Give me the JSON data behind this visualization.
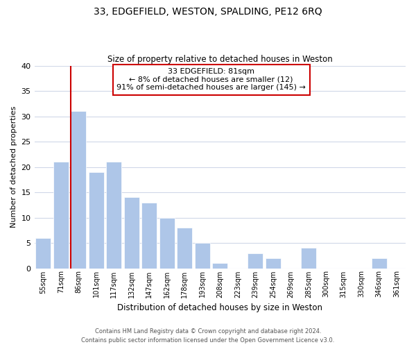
{
  "title_line1": "33, EDGEFIELD, WESTON, SPALDING, PE12 6RQ",
  "title_line2": "Size of property relative to detached houses in Weston",
  "xlabel": "Distribution of detached houses by size in Weston",
  "ylabel": "Number of detached properties",
  "bar_labels": [
    "55sqm",
    "71sqm",
    "86sqm",
    "101sqm",
    "117sqm",
    "132sqm",
    "147sqm",
    "162sqm",
    "178sqm",
    "193sqm",
    "208sqm",
    "223sqm",
    "239sqm",
    "254sqm",
    "269sqm",
    "285sqm",
    "300sqm",
    "315sqm",
    "330sqm",
    "346sqm",
    "361sqm"
  ],
  "bar_values": [
    6,
    21,
    31,
    19,
    21,
    14,
    13,
    10,
    8,
    5,
    1,
    0,
    3,
    2,
    0,
    4,
    0,
    0,
    0,
    2,
    0
  ],
  "bar_color": "#aec6e8",
  "annotation_title": "33 EDGEFIELD: 81sqm",
  "annotation_line1": "← 8% of detached houses are smaller (12)",
  "annotation_line2": "91% of semi-detached houses are larger (145) →",
  "annotation_box_edge": "#cc0000",
  "redline_color": "#cc0000",
  "grid_color": "#d0d8e8",
  "ylim": [
    0,
    40
  ],
  "yticks": [
    0,
    5,
    10,
    15,
    20,
    25,
    30,
    35,
    40
  ],
  "footer1": "Contains HM Land Registry data © Crown copyright and database right 2024.",
  "footer2": "Contains public sector information licensed under the Open Government Licence v3.0.",
  "redline_bar_index": 2,
  "bar_width": 0.85
}
